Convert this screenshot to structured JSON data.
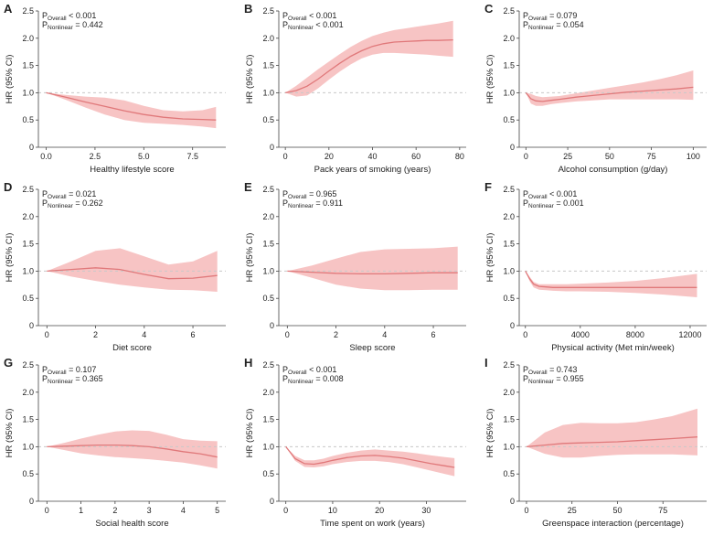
{
  "colors": {
    "line": "#e0787a",
    "ci_band": "#f7c4c4",
    "axis": "#444444",
    "reference": "#c8c8c8"
  },
  "chart_data": [
    {
      "type": "line",
      "panel": "A",
      "xlabel": "Healthy lifestyle score",
      "ylabel": "HR (95% CI)",
      "p_overall": "< 0.001",
      "p_nonlinear": "= 0.442",
      "xlim": [
        -0.4,
        9.2
      ],
      "ylim": [
        0,
        2.5
      ],
      "xticks": [
        0,
        2.5,
        5,
        7.5
      ],
      "xtick_labels": [
        "0.0",
        "2.5",
        "5.0",
        "7.5"
      ],
      "yticks": [
        0,
        0.5,
        1,
        1.5,
        2,
        2.5
      ],
      "ytick_labels": [
        "0",
        "0.5",
        "1.0",
        "1.5",
        "2.0",
        "2.5"
      ],
      "reference_y": 1,
      "x": [
        0,
        1,
        2,
        3,
        4,
        5,
        6,
        7,
        8,
        8.7
      ],
      "hr": [
        1.0,
        0.92,
        0.83,
        0.75,
        0.67,
        0.6,
        0.55,
        0.52,
        0.51,
        0.5
      ],
      "lower": [
        1.0,
        0.87,
        0.73,
        0.6,
        0.5,
        0.45,
        0.43,
        0.41,
        0.38,
        0.35
      ],
      "upper": [
        1.0,
        0.96,
        0.93,
        0.91,
        0.86,
        0.76,
        0.68,
        0.66,
        0.68,
        0.74
      ]
    },
    {
      "type": "line",
      "panel": "B",
      "xlabel": "Pack years of smoking (years)",
      "ylabel": "HR (95% CI)",
      "p_overall": "< 0.001",
      "p_nonlinear": "< 0.001",
      "xlim": [
        -3,
        83
      ],
      "ylim": [
        0,
        2.5
      ],
      "xticks": [
        0,
        20,
        40,
        60,
        80
      ],
      "xtick_labels": [
        "0",
        "20",
        "40",
        "60",
        "80"
      ],
      "yticks": [
        0,
        0.5,
        1,
        1.5,
        2,
        2.5
      ],
      "ytick_labels": [
        "0",
        "0.5",
        "1.0",
        "1.5",
        "2.0",
        "2.5"
      ],
      "reference_y": 1,
      "x": [
        0,
        5,
        10,
        15,
        20,
        25,
        30,
        35,
        40,
        45,
        50,
        55,
        60,
        65,
        70,
        77
      ],
      "hr": [
        1.0,
        1.04,
        1.12,
        1.25,
        1.4,
        1.54,
        1.67,
        1.77,
        1.85,
        1.9,
        1.93,
        1.94,
        1.95,
        1.96,
        1.96,
        1.97
      ],
      "lower": [
        1.0,
        0.93,
        0.95,
        1.08,
        1.24,
        1.39,
        1.52,
        1.63,
        1.7,
        1.73,
        1.73,
        1.72,
        1.71,
        1.7,
        1.68,
        1.66
      ],
      "upper": [
        1.0,
        1.13,
        1.28,
        1.43,
        1.57,
        1.71,
        1.84,
        1.95,
        2.04,
        2.1,
        2.15,
        2.18,
        2.21,
        2.24,
        2.27,
        2.32
      ]
    },
    {
      "type": "line",
      "panel": "C",
      "xlabel": "Alcohol consumption (g/day)",
      "ylabel": "HR (95% CI)",
      "p_overall": "= 0.079",
      "p_nonlinear": "= 0.054",
      "xlim": [
        -4,
        108
      ],
      "ylim": [
        0,
        2.5
      ],
      "xticks": [
        0,
        25,
        50,
        75,
        100
      ],
      "xtick_labels": [
        "0",
        "25",
        "50",
        "75",
        "100"
      ],
      "yticks": [
        0,
        0.5,
        1,
        1.5,
        2,
        2.5
      ],
      "ytick_labels": [
        "0",
        "0.5",
        "1.0",
        "1.5",
        "2.0",
        "2.5"
      ],
      "reference_y": 1,
      "x": [
        0,
        3,
        6,
        10,
        15,
        20,
        30,
        40,
        50,
        60,
        70,
        80,
        90,
        100
      ],
      "hr": [
        1.0,
        0.89,
        0.85,
        0.84,
        0.86,
        0.88,
        0.92,
        0.95,
        0.98,
        1.01,
        1.03,
        1.05,
        1.07,
        1.1
      ],
      "lower": [
        1.0,
        0.8,
        0.76,
        0.76,
        0.79,
        0.81,
        0.84,
        0.86,
        0.88,
        0.88,
        0.88,
        0.88,
        0.88,
        0.87
      ],
      "upper": [
        1.0,
        0.98,
        0.94,
        0.92,
        0.93,
        0.94,
        0.99,
        1.04,
        1.09,
        1.14,
        1.19,
        1.25,
        1.32,
        1.41
      ]
    },
    {
      "type": "line",
      "panel": "D",
      "xlabel": "Diet score",
      "ylabel": "HR (95% CI)",
      "p_overall": "= 0.021",
      "p_nonlinear": "= 0.262",
      "xlim": [
        -0.35,
        7.35
      ],
      "ylim": [
        0,
        2.5
      ],
      "xticks": [
        0,
        2,
        4,
        6
      ],
      "xtick_labels": [
        "0",
        "2",
        "4",
        "6"
      ],
      "yticks": [
        0,
        0.5,
        1,
        1.5,
        2,
        2.5
      ],
      "ytick_labels": [
        "0",
        "0.5",
        "1.0",
        "1.5",
        "2.0",
        "2.5"
      ],
      "reference_y": 1,
      "x": [
        0,
        1,
        2,
        3,
        4,
        5,
        6,
        7
      ],
      "hr": [
        1.0,
        1.03,
        1.06,
        1.03,
        0.94,
        0.86,
        0.87,
        0.92
      ],
      "lower": [
        1.0,
        0.9,
        0.82,
        0.75,
        0.7,
        0.66,
        0.65,
        0.62
      ],
      "upper": [
        1.0,
        1.18,
        1.37,
        1.42,
        1.27,
        1.12,
        1.18,
        1.37
      ]
    },
    {
      "type": "line",
      "panel": "E",
      "xlabel": "Sleep score",
      "ylabel": "HR (95% CI)",
      "p_overall": "= 0.965",
      "p_nonlinear": "= 0.911",
      "xlim": [
        -0.35,
        7.35
      ],
      "ylim": [
        0,
        2.5
      ],
      "xticks": [
        0,
        2,
        4,
        6
      ],
      "xtick_labels": [
        "0",
        "2",
        "4",
        "6"
      ],
      "yticks": [
        0,
        0.5,
        1,
        1.5,
        2,
        2.5
      ],
      "ytick_labels": [
        "0",
        "0.5",
        "1.0",
        "1.5",
        "2.0",
        "2.5"
      ],
      "reference_y": 1,
      "x": [
        0,
        1,
        2,
        3,
        4,
        5,
        6,
        7
      ],
      "hr": [
        1.0,
        0.98,
        0.96,
        0.95,
        0.95,
        0.96,
        0.97,
        0.97
      ],
      "lower": [
        1.0,
        0.88,
        0.75,
        0.68,
        0.65,
        0.65,
        0.66,
        0.66
      ],
      "upper": [
        1.0,
        1.1,
        1.23,
        1.35,
        1.4,
        1.41,
        1.42,
        1.45
      ]
    },
    {
      "type": "line",
      "panel": "F",
      "xlabel": "Physical activity (Met min/week)",
      "ylabel": "HR (95% CI)",
      "p_overall": "< 0.001",
      "p_nonlinear": "= 0.001",
      "xlim": [
        -450,
        13200
      ],
      "ylim": [
        0,
        2.5
      ],
      "xticks": [
        0,
        4000,
        8000,
        12000
      ],
      "xtick_labels": [
        "0",
        "4000",
        "8000",
        "12000"
      ],
      "yticks": [
        0,
        0.5,
        1,
        1.5,
        2,
        2.5
      ],
      "ytick_labels": [
        "0",
        "0.5",
        "1.0",
        "1.5",
        "2.0",
        "2.5"
      ],
      "reference_y": 1,
      "x": [
        0,
        300,
        600,
        1000,
        1500,
        2000,
        3000,
        4000,
        6000,
        8000,
        10000,
        12500
      ],
      "hr": [
        1.0,
        0.86,
        0.76,
        0.72,
        0.71,
        0.7,
        0.7,
        0.7,
        0.7,
        0.7,
        0.7,
        0.7
      ],
      "lower": [
        1.0,
        0.82,
        0.7,
        0.66,
        0.65,
        0.64,
        0.63,
        0.63,
        0.62,
        0.6,
        0.57,
        0.52
      ],
      "upper": [
        1.0,
        0.9,
        0.8,
        0.76,
        0.76,
        0.76,
        0.76,
        0.77,
        0.79,
        0.82,
        0.87,
        0.95
      ]
    },
    {
      "type": "line",
      "panel": "G",
      "xlabel": "Social health score",
      "ylabel": "HR (95% CI)",
      "p_overall": "= 0.107",
      "p_nonlinear": "= 0.365",
      "xlim": [
        -0.25,
        5.25
      ],
      "ylim": [
        0,
        2.5
      ],
      "xticks": [
        0,
        1,
        2,
        3,
        4,
        5
      ],
      "xtick_labels": [
        "0",
        "1",
        "2",
        "3",
        "4",
        "5"
      ],
      "yticks": [
        0,
        0.5,
        1,
        1.5,
        2,
        2.5
      ],
      "ytick_labels": [
        "0",
        "0.5",
        "1.0",
        "1.5",
        "2.0",
        "2.5"
      ],
      "reference_y": 1,
      "x": [
        0,
        0.5,
        1,
        1.5,
        2,
        2.5,
        3,
        3.5,
        4,
        4.5,
        5
      ],
      "hr": [
        1.0,
        1.01,
        1.02,
        1.03,
        1.03,
        1.02,
        1.0,
        0.96,
        0.91,
        0.87,
        0.81
      ],
      "lower": [
        1.0,
        0.94,
        0.88,
        0.84,
        0.81,
        0.79,
        0.77,
        0.74,
        0.71,
        0.66,
        0.6
      ],
      "upper": [
        1.0,
        1.07,
        1.15,
        1.22,
        1.28,
        1.3,
        1.29,
        1.22,
        1.14,
        1.11,
        1.1
      ]
    },
    {
      "type": "line",
      "panel": "H",
      "xlabel": "Time spent on work (years)",
      "ylabel": "HR (95% CI)",
      "p_overall": "< 0.001",
      "p_nonlinear": "= 0.008",
      "xlim": [
        -1.5,
        38.5
      ],
      "ylim": [
        0,
        2.5
      ],
      "xticks": [
        0,
        10,
        20,
        30
      ],
      "xtick_labels": [
        "0",
        "10",
        "20",
        "30"
      ],
      "yticks": [
        0,
        0.5,
        1,
        1.5,
        2,
        2.5
      ],
      "ytick_labels": [
        "0",
        "0.5",
        "1.0",
        "1.5",
        "2.0",
        "2.5"
      ],
      "reference_y": 1,
      "x": [
        0,
        2,
        4,
        6,
        8,
        10,
        13,
        16,
        19,
        22,
        25,
        28,
        31,
        34,
        36
      ],
      "hr": [
        1.0,
        0.78,
        0.69,
        0.68,
        0.71,
        0.75,
        0.8,
        0.83,
        0.84,
        0.82,
        0.79,
        0.74,
        0.69,
        0.65,
        0.62
      ],
      "lower": [
        1.0,
        0.74,
        0.63,
        0.62,
        0.64,
        0.68,
        0.72,
        0.74,
        0.74,
        0.72,
        0.68,
        0.62,
        0.56,
        0.5,
        0.46
      ],
      "upper": [
        1.0,
        0.83,
        0.75,
        0.75,
        0.78,
        0.83,
        0.89,
        0.93,
        0.95,
        0.93,
        0.91,
        0.88,
        0.84,
        0.81,
        0.79
      ]
    },
    {
      "type": "line",
      "panel": "I",
      "xlabel": "Greenspace interaction (percentage)",
      "ylabel": "HR (95% CI)",
      "p_overall": "= 0.743",
      "p_nonlinear": "= 0.955",
      "xlim": [
        -4,
        99
      ],
      "ylim": [
        0,
        2.5
      ],
      "xticks": [
        0,
        25,
        50,
        75
      ],
      "xtick_labels": [
        "0",
        "25",
        "50",
        "75"
      ],
      "yticks": [
        0,
        0.5,
        1,
        1.5,
        2,
        2.5
      ],
      "ytick_labels": [
        "0",
        "0.5",
        "1.0",
        "1.5",
        "2.0",
        "2.5"
      ],
      "reference_y": 1,
      "x": [
        0,
        10,
        20,
        30,
        40,
        50,
        60,
        70,
        80,
        94
      ],
      "hr": [
        1.0,
        1.03,
        1.06,
        1.07,
        1.08,
        1.09,
        1.11,
        1.13,
        1.15,
        1.18
      ],
      "lower": [
        1.0,
        0.87,
        0.8,
        0.8,
        0.83,
        0.85,
        0.86,
        0.86,
        0.86,
        0.84
      ],
      "upper": [
        1.0,
        1.26,
        1.4,
        1.44,
        1.43,
        1.43,
        1.45,
        1.5,
        1.56,
        1.7
      ]
    }
  ]
}
